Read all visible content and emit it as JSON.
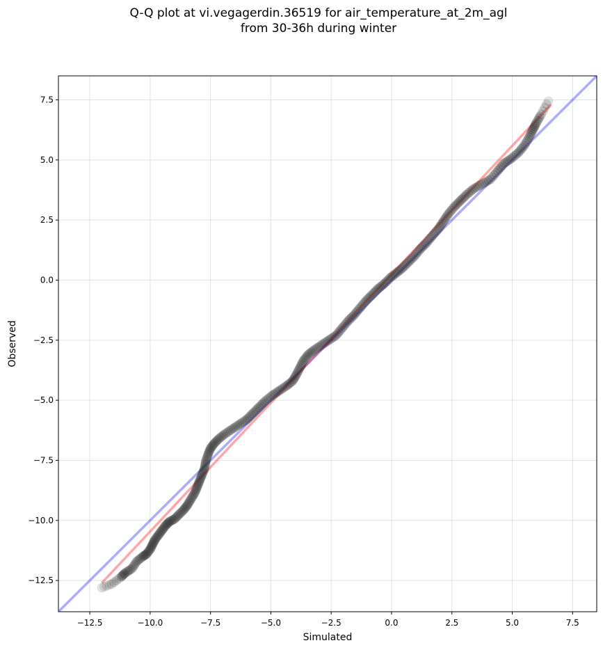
{
  "chart_data": {
    "type": "scatter",
    "title_line1": "Q-Q plot at vi.vegagerdin.36519 for air_temperature_at_2m_agl",
    "title_line2": "from 30-36h during winter",
    "xlabel": "Simulated",
    "ylabel": "Observed",
    "xlim": [
      -13.8,
      8.5
    ],
    "ylim": [
      -13.8,
      8.5
    ],
    "x_ticks": [
      -12.5,
      -10.0,
      -7.5,
      -5.0,
      -2.5,
      0.0,
      2.5,
      5.0,
      7.5
    ],
    "y_ticks": [
      -12.5,
      -10.0,
      -7.5,
      -5.0,
      -2.5,
      0.0,
      2.5,
      5.0,
      7.5
    ],
    "x_tick_labels": [
      "−12.5",
      "−10.0",
      "−7.5",
      "−5.0",
      "−2.5",
      "0.0",
      "2.5",
      "5.0",
      "7.5"
    ],
    "y_tick_labels": [
      "−12.5",
      "−10.0",
      "−7.5",
      "−5.0",
      "−2.5",
      "0.0",
      "2.5",
      "5.0",
      "7.5"
    ],
    "grid": true,
    "points_color": "#222222",
    "identity_line": {
      "color": "#0000ff",
      "x": [
        -13.8,
        8.5
      ],
      "y": [
        -13.8,
        8.5
      ]
    },
    "fit_line": {
      "color": "#ff0000",
      "x": [
        -12.0,
        6.6
      ],
      "y": [
        -12.6,
        7.3
      ]
    },
    "points": [
      [
        -12.0,
        -12.8
      ],
      [
        -11.6,
        -12.65
      ],
      [
        -11.2,
        -12.35
      ],
      [
        -11.05,
        -12.2
      ],
      [
        -10.75,
        -12.0
      ],
      [
        -10.55,
        -11.7
      ],
      [
        -10.3,
        -11.5
      ],
      [
        -10.15,
        -11.4
      ],
      [
        -10.0,
        -11.2
      ],
      [
        -9.9,
        -11.0
      ],
      [
        -9.8,
        -10.8
      ],
      [
        -9.65,
        -10.6
      ],
      [
        -9.5,
        -10.4
      ],
      [
        -9.35,
        -10.2
      ],
      [
        -9.2,
        -10.05
      ],
      [
        -9.0,
        -9.95
      ],
      [
        -8.8,
        -9.75
      ],
      [
        -8.6,
        -9.55
      ],
      [
        -8.45,
        -9.35
      ],
      [
        -8.3,
        -9.1
      ],
      [
        -8.15,
        -8.85
      ],
      [
        -8.05,
        -8.6
      ],
      [
        -7.95,
        -8.35
      ],
      [
        -7.85,
        -8.1
      ],
      [
        -7.75,
        -7.85
      ],
      [
        -7.7,
        -7.55
      ],
      [
        -7.6,
        -7.25
      ],
      [
        -7.5,
        -7.0
      ],
      [
        -7.35,
        -6.8
      ],
      [
        -7.15,
        -6.6
      ],
      [
        -6.9,
        -6.4
      ],
      [
        -6.6,
        -6.2
      ],
      [
        -6.3,
        -6.0
      ],
      [
        -6.0,
        -5.8
      ],
      [
        -5.75,
        -5.55
      ],
      [
        -5.5,
        -5.3
      ],
      [
        -5.25,
        -5.05
      ],
      [
        -4.95,
        -4.8
      ],
      [
        -4.65,
        -4.6
      ],
      [
        -4.35,
        -4.4
      ],
      [
        -4.1,
        -4.2
      ],
      [
        -3.95,
        -3.95
      ],
      [
        -3.8,
        -3.65
      ],
      [
        -3.65,
        -3.35
      ],
      [
        -3.45,
        -3.1
      ],
      [
        -3.2,
        -2.9
      ],
      [
        -2.9,
        -2.7
      ],
      [
        -2.6,
        -2.5
      ],
      [
        -2.3,
        -2.3
      ],
      [
        -2.05,
        -2.0
      ],
      [
        -1.8,
        -1.7
      ],
      [
        -1.55,
        -1.45
      ],
      [
        -1.3,
        -1.15
      ],
      [
        -1.05,
        -0.85
      ],
      [
        -0.8,
        -0.6
      ],
      [
        -0.55,
        -0.35
      ],
      [
        -0.3,
        -0.15
      ],
      [
        -0.05,
        0.1
      ],
      [
        0.2,
        0.3
      ],
      [
        0.45,
        0.5
      ],
      [
        0.7,
        0.75
      ],
      [
        0.95,
        1.0
      ],
      [
        1.2,
        1.3
      ],
      [
        1.45,
        1.55
      ],
      [
        1.7,
        1.85
      ],
      [
        1.95,
        2.15
      ],
      [
        2.15,
        2.45
      ],
      [
        2.35,
        2.75
      ],
      [
        2.6,
        3.05
      ],
      [
        2.85,
        3.3
      ],
      [
        3.1,
        3.55
      ],
      [
        3.4,
        3.8
      ],
      [
        3.75,
        4.0
      ],
      [
        4.1,
        4.2
      ],
      [
        4.4,
        4.55
      ],
      [
        4.65,
        4.85
      ],
      [
        4.95,
        5.05
      ],
      [
        5.25,
        5.3
      ],
      [
        5.5,
        5.6
      ],
      [
        5.7,
        5.95
      ],
      [
        5.85,
        6.25
      ],
      [
        6.0,
        6.55
      ],
      [
        6.2,
        6.9
      ],
      [
        6.5,
        7.45
      ]
    ]
  }
}
